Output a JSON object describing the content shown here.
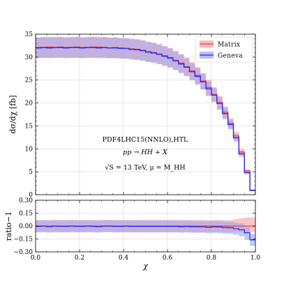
{
  "chart_data": [
    {
      "type": "line",
      "panel": "main",
      "ylabel": "dσ/dχ [fb]",
      "xlim": [
        0.0,
        1.0
      ],
      "ylim": [
        0,
        35
      ],
      "yticks": [
        "0",
        "5",
        "10",
        "15",
        "20",
        "25",
        "30",
        "35"
      ],
      "grid": true,
      "legend": {
        "placement": "top-right",
        "entries": [
          "Matrix",
          "Geneva"
        ]
      },
      "annotations": [
        "PDF4LHC15(NNLO),HTL",
        "pp → HH + X",
        "√S = 13 TeV, μ = M_HH"
      ],
      "x_bins": [
        0.0,
        0.025,
        0.05,
        0.075,
        0.1,
        0.125,
        0.15,
        0.175,
        0.2,
        0.225,
        0.25,
        0.275,
        0.3,
        0.325,
        0.35,
        0.375,
        0.4,
        0.425,
        0.45,
        0.475,
        0.5,
        0.525,
        0.55,
        0.575,
        0.6,
        0.625,
        0.65,
        0.675,
        0.7,
        0.725,
        0.75,
        0.775,
        0.8,
        0.825,
        0.85,
        0.875,
        0.9,
        0.925,
        0.95,
        0.975,
        1.0
      ],
      "series": [
        {
          "name": "Matrix",
          "color": "#ff3333",
          "band_color": "#f4a0a0",
          "values": [
            32.1,
            32.1,
            32.2,
            32.1,
            32.2,
            32.1,
            32.1,
            32.2,
            32.1,
            32.1,
            32.2,
            32.2,
            32.1,
            32.0,
            32.1,
            32.0,
            31.9,
            31.8,
            31.7,
            31.5,
            31.2,
            31.0,
            30.7,
            30.3,
            29.9,
            29.3,
            28.7,
            27.9,
            27.0,
            26.0,
            24.8,
            23.4,
            21.9,
            20.1,
            18.0,
            15.6,
            12.8,
            9.3,
            5.2,
            1.0
          ],
          "band_rel": 0.07
        },
        {
          "name": "Geneva",
          "color": "#2222ff",
          "band_color": "#9fa3ef",
          "values": [
            32.0,
            32.1,
            32.0,
            32.1,
            32.1,
            32.0,
            32.1,
            32.1,
            32.0,
            32.1,
            32.1,
            32.0,
            32.1,
            32.0,
            32.0,
            31.9,
            31.9,
            31.7,
            31.6,
            31.4,
            31.1,
            30.9,
            30.6,
            30.2,
            29.8,
            29.2,
            28.5,
            27.8,
            26.8,
            25.8,
            24.6,
            23.1,
            21.7,
            19.9,
            17.7,
            15.3,
            12.4,
            8.9,
            4.8,
            0.9
          ],
          "band_rel": 0.07
        }
      ]
    },
    {
      "type": "line",
      "panel": "ratio",
      "xlabel": "χ",
      "ylabel": "ratio−1",
      "xlim": [
        0.0,
        1.0
      ],
      "ylim": [
        -0.3,
        0.3
      ],
      "xticks": [
        "0.0",
        "0.2",
        "0.4",
        "0.6",
        "0.8",
        "1.0"
      ],
      "yticks": [
        "0.30",
        "0.15",
        "0.00",
        "−0.15",
        "−0.30"
      ],
      "grid": true,
      "x_bins": [
        0.0,
        0.025,
        0.05,
        0.075,
        0.1,
        0.125,
        0.15,
        0.175,
        0.2,
        0.225,
        0.25,
        0.275,
        0.3,
        0.325,
        0.35,
        0.375,
        0.4,
        0.425,
        0.45,
        0.475,
        0.5,
        0.525,
        0.55,
        0.575,
        0.6,
        0.625,
        0.65,
        0.675,
        0.7,
        0.725,
        0.75,
        0.775,
        0.8,
        0.825,
        0.85,
        0.875,
        0.9,
        0.925,
        0.95,
        0.975,
        1.0
      ],
      "series": [
        {
          "name": "Matrix",
          "color": "#ff3333",
          "band_color": "#f4a0a0",
          "values": [
            0,
            0,
            0,
            0,
            0,
            0,
            0,
            0,
            0,
            0,
            0,
            0,
            0,
            0,
            0,
            0,
            0,
            0,
            0,
            0,
            0,
            0,
            0,
            0,
            0,
            0,
            0,
            0,
            0,
            0,
            0,
            0,
            0,
            0,
            0,
            0,
            0,
            0,
            0,
            0
          ],
          "band_lo": [
            -0.07,
            -0.07,
            -0.07,
            -0.07,
            -0.07,
            -0.07,
            -0.07,
            -0.07,
            -0.07,
            -0.07,
            -0.07,
            -0.07,
            -0.07,
            -0.07,
            -0.07,
            -0.07,
            -0.07,
            -0.07,
            -0.07,
            -0.07,
            -0.07,
            -0.07,
            -0.07,
            -0.07,
            -0.07,
            -0.07,
            -0.07,
            -0.07,
            -0.07,
            -0.07,
            -0.07,
            -0.07,
            -0.07,
            -0.07,
            -0.07,
            -0.07,
            -0.07,
            -0.07,
            -0.07,
            -0.07
          ],
          "band_hi": [
            0.07,
            0.07,
            0.07,
            0.07,
            0.07,
            0.07,
            0.07,
            0.07,
            0.07,
            0.07,
            0.07,
            0.07,
            0.07,
            0.07,
            0.07,
            0.07,
            0.07,
            0.07,
            0.07,
            0.07,
            0.07,
            0.07,
            0.07,
            0.07,
            0.07,
            0.07,
            0.07,
            0.07,
            0.07,
            0.07,
            0.07,
            0.07,
            0.07,
            0.07,
            0.07,
            0.07,
            0.08,
            0.09,
            0.1,
            0.1
          ]
        },
        {
          "name": "Geneva",
          "color": "#2222ff",
          "band_color": "#9fa3ef",
          "values": [
            -0.003,
            0.0,
            -0.006,
            0.0,
            -0.003,
            -0.003,
            0.0,
            -0.003,
            -0.003,
            0.0,
            -0.003,
            -0.006,
            0.0,
            0.0,
            -0.003,
            -0.003,
            0.0,
            -0.003,
            -0.003,
            -0.003,
            -0.003,
            -0.003,
            -0.003,
            -0.003,
            -0.003,
            -0.003,
            -0.007,
            -0.004,
            -0.007,
            -0.008,
            -0.008,
            -0.013,
            -0.009,
            -0.01,
            -0.017,
            -0.019,
            -0.031,
            -0.043,
            -0.077,
            -0.16
          ],
          "band_lo": [
            -0.073,
            -0.07,
            -0.076,
            -0.07,
            -0.073,
            -0.073,
            -0.07,
            -0.073,
            -0.073,
            -0.07,
            -0.073,
            -0.076,
            -0.07,
            -0.07,
            -0.073,
            -0.073,
            -0.07,
            -0.073,
            -0.073,
            -0.073,
            -0.073,
            -0.073,
            -0.073,
            -0.073,
            -0.073,
            -0.073,
            -0.077,
            -0.074,
            -0.077,
            -0.078,
            -0.078,
            -0.083,
            -0.079,
            -0.08,
            -0.087,
            -0.09,
            -0.1,
            -0.12,
            -0.16,
            -0.23
          ],
          "band_hi": [
            0.067,
            0.07,
            0.064,
            0.07,
            0.067,
            0.067,
            0.07,
            0.067,
            0.067,
            0.07,
            0.067,
            0.064,
            0.07,
            0.07,
            0.067,
            0.067,
            0.07,
            0.067,
            0.067,
            0.067,
            0.067,
            0.067,
            0.067,
            0.067,
            0.067,
            0.067,
            0.063,
            0.066,
            0.063,
            0.062,
            0.062,
            0.057,
            0.061,
            0.06,
            0.053,
            0.05,
            0.04,
            0.03,
            -0.01,
            -0.09
          ]
        }
      ]
    }
  ]
}
